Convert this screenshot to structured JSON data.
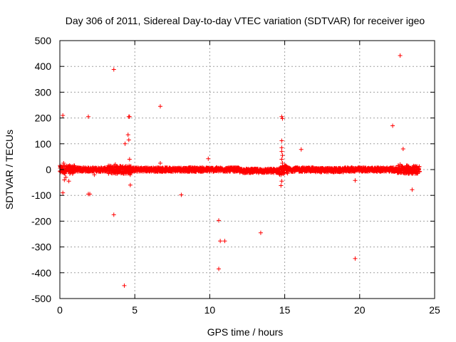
{
  "chart_data": {
    "type": "scatter",
    "title": "Day 306 of 2011, Sidereal Day-to-day VTEC variation (SDTVAR) for receiver igeo",
    "xlabel": "GPS time / hours",
    "ylabel": "SDTVAR / TECUs",
    "xlim": [
      0,
      25
    ],
    "ylim": [
      -500,
      500
    ],
    "xticks": [
      0,
      5,
      10,
      15,
      20,
      25
    ],
    "yticks": [
      -500,
      -400,
      -300,
      -200,
      -100,
      0,
      100,
      200,
      300,
      400,
      500
    ],
    "grid": true,
    "marker": "+",
    "colors": {
      "series": "#ff0000",
      "grid": "#a0a0a0",
      "axis": "#000000"
    },
    "series": [
      {
        "name": "SDTVAR",
        "band": {
          "description": "dense band of points near zero",
          "x_range": [
            0,
            24
          ],
          "y_amplitude": 8,
          "bulge_ranges": [
            [
              0,
              1
            ],
            [
              3.2,
              4.8
            ],
            [
              14.6,
              15.2
            ],
            [
              22.5,
              24
            ]
          ]
        },
        "outliers": [
          {
            "x": 0.2,
            "y": 210
          },
          {
            "x": 0.2,
            "y": -90
          },
          {
            "x": 0.25,
            "y": 25
          },
          {
            "x": 0.3,
            "y": -40
          },
          {
            "x": 0.4,
            "y": -30
          },
          {
            "x": 0.6,
            "y": -45
          },
          {
            "x": 1.9,
            "y": 205
          },
          {
            "x": 1.9,
            "y": -95
          },
          {
            "x": 2.0,
            "y": -95
          },
          {
            "x": 2.3,
            "y": -20
          },
          {
            "x": 3.6,
            "y": 388
          },
          {
            "x": 3.6,
            "y": -175
          },
          {
            "x": 3.7,
            "y": 20
          },
          {
            "x": 4.3,
            "y": -450
          },
          {
            "x": 4.35,
            "y": 100
          },
          {
            "x": 4.55,
            "y": 135
          },
          {
            "x": 4.6,
            "y": 205
          },
          {
            "x": 4.65,
            "y": 205
          },
          {
            "x": 4.6,
            "y": 115
          },
          {
            "x": 4.65,
            "y": 40
          },
          {
            "x": 4.7,
            "y": -60
          },
          {
            "x": 4.7,
            "y": -20
          },
          {
            "x": 6.7,
            "y": 245
          },
          {
            "x": 6.7,
            "y": 25
          },
          {
            "x": 8.1,
            "y": -98
          },
          {
            "x": 9.9,
            "y": 42
          },
          {
            "x": 10.6,
            "y": -197
          },
          {
            "x": 10.6,
            "y": -385
          },
          {
            "x": 10.7,
            "y": -277
          },
          {
            "x": 11.0,
            "y": -277
          },
          {
            "x": 13.4,
            "y": -245
          },
          {
            "x": 14.8,
            "y": 205
          },
          {
            "x": 14.85,
            "y": 198
          },
          {
            "x": 14.8,
            "y": 112
          },
          {
            "x": 14.8,
            "y": 85
          },
          {
            "x": 14.8,
            "y": 70
          },
          {
            "x": 14.85,
            "y": 55
          },
          {
            "x": 14.8,
            "y": 40
          },
          {
            "x": 14.85,
            "y": 25
          },
          {
            "x": 14.8,
            "y": -45
          },
          {
            "x": 14.75,
            "y": -62
          },
          {
            "x": 16.1,
            "y": 78
          },
          {
            "x": 19.7,
            "y": -345
          },
          {
            "x": 19.7,
            "y": -42
          },
          {
            "x": 22.2,
            "y": 170
          },
          {
            "x": 22.7,
            "y": 442
          },
          {
            "x": 22.9,
            "y": 80
          },
          {
            "x": 23.5,
            "y": -78
          },
          {
            "x": 22.7,
            "y": 20
          }
        ]
      }
    ]
  }
}
